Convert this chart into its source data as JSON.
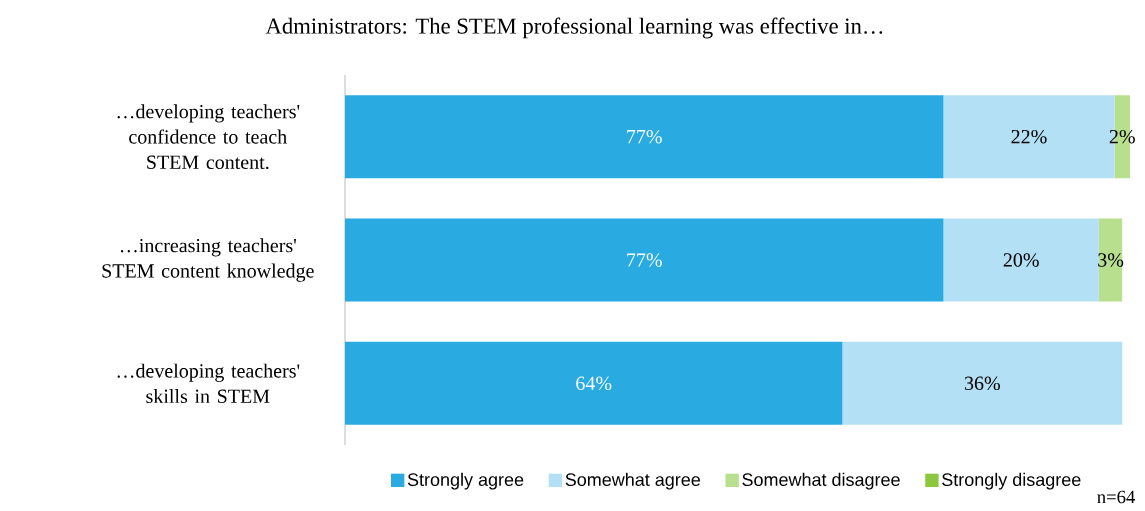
{
  "chart_data": {
    "type": "bar",
    "orientation": "horizontal",
    "stacked": true,
    "title": "Administrators: The STEM professional learning was effective in…",
    "categories": [
      "…developing teachers' confidence to teach STEM content.",
      "…increasing teachers' STEM content knowledge",
      "…developing teachers' skills in STEM"
    ],
    "series": [
      {
        "name": "Strongly agree",
        "color": "#29abe2",
        "values": [
          77,
          77,
          64
        ],
        "value_labels": [
          "77%",
          "77%",
          "64%"
        ]
      },
      {
        "name": "Somewhat agree",
        "color": "#b3e0f5",
        "values": [
          22,
          20,
          36
        ],
        "value_labels": [
          "22%",
          "20%",
          "36%"
        ]
      },
      {
        "name": "Somewhat disagree",
        "color": "#b8df8e",
        "values": [
          2,
          3,
          null
        ],
        "value_labels": [
          "2%",
          "3%",
          null
        ]
      },
      {
        "name": "Strongly disagree",
        "color": "#8dc63f",
        "values": [
          null,
          null,
          null
        ]
      }
    ],
    "legend": "bottom",
    "annotations": [
      "n=64"
    ]
  }
}
